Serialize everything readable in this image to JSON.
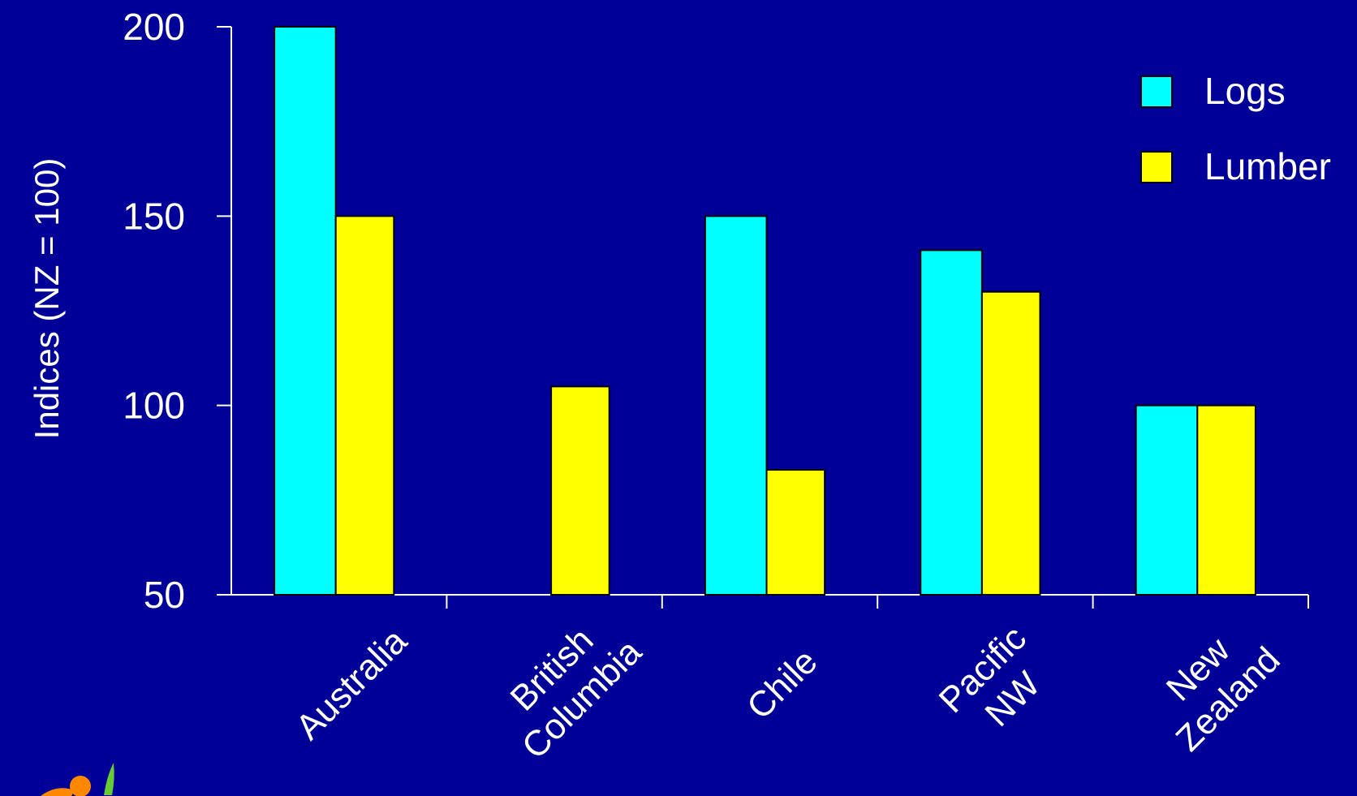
{
  "chart_data": {
    "type": "bar",
    "title": "",
    "xlabel": "",
    "ylabel": "Indices (NZ = 100)",
    "ylim": [
      50,
      200
    ],
    "yticks": [
      50,
      100,
      150,
      200
    ],
    "categories": [
      [
        "Australia"
      ],
      [
        "British",
        "Columbia"
      ],
      [
        "Chile"
      ],
      [
        "Pacific",
        "NW"
      ],
      [
        "New",
        "Zealand"
      ]
    ],
    "series": [
      {
        "name": "Logs",
        "color": "#00ffff",
        "values": [
          200,
          null,
          150,
          141,
          100
        ]
      },
      {
        "name": "Lumber",
        "color": "#ffff00",
        "values": [
          150,
          105,
          83,
          130,
          100
        ]
      }
    ],
    "legend_position": "top-right",
    "grid": false
  },
  "colors": {
    "background": "#000099",
    "axis": "#ffffff",
    "bar_outline": "#000000"
  }
}
